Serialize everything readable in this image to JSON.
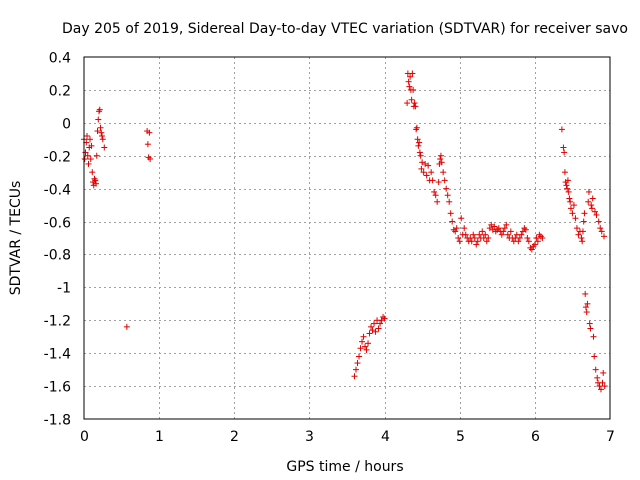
{
  "chart_data": {
    "type": "scatter",
    "title": "Day 205 of 2019, Sidereal Day-to-day VTEC variation (SDTVAR) for receiver savo",
    "xlabel": "GPS time / hours",
    "ylabel": "SDTVAR / TECUs",
    "xlim": [
      0,
      7
    ],
    "ylim": [
      -1.8,
      0.4
    ],
    "xticks": [
      0,
      1,
      2,
      3,
      4,
      5,
      6,
      7
    ],
    "xtick_labels": [
      "0",
      "1",
      "2",
      "3",
      "4",
      "5",
      "6",
      "7"
    ],
    "yticks": [
      0.4,
      0.2,
      0,
      -0.2,
      -0.4,
      -0.6,
      -0.8,
      -1,
      -1.2,
      -1.4,
      -1.6,
      -1.8
    ],
    "ytick_labels": [
      "0.4",
      "0.2",
      "0",
      "-0.2",
      "-0.4",
      "-0.6",
      "-0.8",
      "-1",
      "-1.2",
      "-1.4",
      "-1.6",
      "-1.8"
    ],
    "grid": true,
    "marker": "+",
    "marker_color": "#e00000",
    "series": [
      {
        "name": "SDTVAR",
        "points": [
          [
            0.0,
            -0.1
          ],
          [
            0.01,
            -0.22
          ],
          [
            0.02,
            -0.18
          ],
          [
            0.03,
            -0.12
          ],
          [
            0.04,
            -0.08
          ],
          [
            0.05,
            -0.2
          ],
          [
            0.06,
            -0.25
          ],
          [
            0.07,
            -0.15
          ],
          [
            0.08,
            -0.1
          ],
          [
            0.09,
            -0.22
          ],
          [
            0.1,
            -0.14
          ],
          [
            0.11,
            -0.3
          ],
          [
            0.12,
            -0.36
          ],
          [
            0.13,
            -0.38
          ],
          [
            0.14,
            -0.34
          ],
          [
            0.15,
            -0.35
          ],
          [
            0.16,
            -0.37
          ],
          [
            0.17,
            -0.2
          ],
          [
            0.18,
            -0.05
          ],
          [
            0.19,
            0.02
          ],
          [
            0.2,
            0.07
          ],
          [
            0.21,
            0.08
          ],
          [
            0.22,
            -0.03
          ],
          [
            0.23,
            -0.06
          ],
          [
            0.24,
            -0.08
          ],
          [
            0.25,
            -0.1
          ],
          [
            0.27,
            -0.15
          ],
          [
            0.57,
            -1.24
          ],
          [
            0.84,
            -0.05
          ],
          [
            0.85,
            -0.13
          ],
          [
            0.86,
            -0.21
          ],
          [
            0.87,
            -0.06
          ],
          [
            0.88,
            -0.22
          ],
          [
            3.6,
            -1.54
          ],
          [
            3.62,
            -1.5
          ],
          [
            3.64,
            -1.46
          ],
          [
            3.66,
            -1.42
          ],
          [
            3.68,
            -1.37
          ],
          [
            3.7,
            -1.33
          ],
          [
            3.72,
            -1.3
          ],
          [
            3.74,
            -1.36
          ],
          [
            3.76,
            -1.38
          ],
          [
            3.78,
            -1.34
          ],
          [
            3.8,
            -1.28
          ],
          [
            3.82,
            -1.24
          ],
          [
            3.84,
            -1.26
          ],
          [
            3.86,
            -1.22
          ],
          [
            3.88,
            -1.27
          ],
          [
            3.9,
            -1.2
          ],
          [
            3.92,
            -1.25
          ],
          [
            3.94,
            -1.22
          ],
          [
            3.96,
            -1.2
          ],
          [
            3.98,
            -1.18
          ],
          [
            4.0,
            -1.19
          ],
          [
            4.3,
            0.12
          ],
          [
            4.31,
            0.3
          ],
          [
            4.32,
            0.25
          ],
          [
            4.33,
            0.22
          ],
          [
            4.34,
            0.28
          ],
          [
            4.35,
            0.2
          ],
          [
            4.36,
            0.14
          ],
          [
            4.37,
            0.3
          ],
          [
            4.38,
            0.2
          ],
          [
            4.39,
            0.1
          ],
          [
            4.4,
            0.12
          ],
          [
            4.41,
            0.1
          ],
          [
            4.42,
            -0.04
          ],
          [
            4.43,
            -0.03
          ],
          [
            4.44,
            -0.1
          ],
          [
            4.45,
            -0.14
          ],
          [
            4.46,
            -0.12
          ],
          [
            4.47,
            -0.18
          ],
          [
            4.48,
            -0.2
          ],
          [
            4.49,
            -0.28
          ],
          [
            4.5,
            -0.24
          ],
          [
            4.52,
            -0.3
          ],
          [
            4.54,
            -0.25
          ],
          [
            4.56,
            -0.32
          ],
          [
            4.58,
            -0.26
          ],
          [
            4.6,
            -0.35
          ],
          [
            4.62,
            -0.3
          ],
          [
            4.64,
            -0.35
          ],
          [
            4.66,
            -0.42
          ],
          [
            4.68,
            -0.44
          ],
          [
            4.7,
            -0.48
          ],
          [
            4.72,
            -0.36
          ],
          [
            4.73,
            -0.25
          ],
          [
            4.74,
            -0.22
          ],
          [
            4.75,
            -0.2
          ],
          [
            4.76,
            -0.24
          ],
          [
            4.78,
            -0.3
          ],
          [
            4.8,
            -0.35
          ],
          [
            4.82,
            -0.4
          ],
          [
            4.84,
            -0.44
          ],
          [
            4.86,
            -0.48
          ],
          [
            4.88,
            -0.55
          ],
          [
            4.9,
            -0.6
          ],
          [
            4.92,
            -0.65
          ],
          [
            4.94,
            -0.66
          ],
          [
            4.96,
            -0.64
          ],
          [
            4.98,
            -0.7
          ],
          [
            5.0,
            -0.72
          ],
          [
            5.02,
            -0.58
          ],
          [
            5.04,
            -0.68
          ],
          [
            5.06,
            -0.64
          ],
          [
            5.08,
            -0.68
          ],
          [
            5.1,
            -0.7
          ],
          [
            5.12,
            -0.72
          ],
          [
            5.14,
            -0.7
          ],
          [
            5.16,
            -0.72
          ],
          [
            5.18,
            -0.68
          ],
          [
            5.2,
            -0.7
          ],
          [
            5.22,
            -0.74
          ],
          [
            5.24,
            -0.72
          ],
          [
            5.26,
            -0.68
          ],
          [
            5.28,
            -0.7
          ],
          [
            5.3,
            -0.66
          ],
          [
            5.32,
            -0.7
          ],
          [
            5.34,
            -0.68
          ],
          [
            5.36,
            -0.72
          ],
          [
            5.38,
            -0.7
          ],
          [
            5.4,
            -0.64
          ],
          [
            5.42,
            -0.62
          ],
          [
            5.44,
            -0.65
          ],
          [
            5.46,
            -0.63
          ],
          [
            5.48,
            -0.66
          ],
          [
            5.5,
            -0.65
          ],
          [
            5.52,
            -0.64
          ],
          [
            5.54,
            -0.66
          ],
          [
            5.56,
            -0.68
          ],
          [
            5.58,
            -0.66
          ],
          [
            5.6,
            -0.64
          ],
          [
            5.62,
            -0.62
          ],
          [
            5.64,
            -0.68
          ],
          [
            5.66,
            -0.7
          ],
          [
            5.68,
            -0.66
          ],
          [
            5.7,
            -0.7
          ],
          [
            5.72,
            -0.72
          ],
          [
            5.74,
            -0.7
          ],
          [
            5.76,
            -0.68
          ],
          [
            5.78,
            -0.72
          ],
          [
            5.8,
            -0.7
          ],
          [
            5.82,
            -0.68
          ],
          [
            5.84,
            -0.66
          ],
          [
            5.86,
            -0.64
          ],
          [
            5.88,
            -0.65
          ],
          [
            5.9,
            -0.7
          ],
          [
            5.92,
            -0.72
          ],
          [
            5.94,
            -0.76
          ],
          [
            5.96,
            -0.77
          ],
          [
            5.98,
            -0.75
          ],
          [
            6.0,
            -0.74
          ],
          [
            6.02,
            -0.7
          ],
          [
            6.04,
            -0.72
          ],
          [
            6.06,
            -0.68
          ],
          [
            6.08,
            -0.69
          ],
          [
            6.1,
            -0.7
          ],
          [
            6.36,
            -0.04
          ],
          [
            6.38,
            -0.15
          ],
          [
            6.39,
            -0.18
          ],
          [
            6.4,
            -0.3
          ],
          [
            6.41,
            -0.36
          ],
          [
            6.42,
            -0.38
          ],
          [
            6.43,
            -0.4
          ],
          [
            6.44,
            -0.35
          ],
          [
            6.45,
            -0.42
          ],
          [
            6.46,
            -0.46
          ],
          [
            6.47,
            -0.48
          ],
          [
            6.48,
            -0.52
          ],
          [
            6.5,
            -0.55
          ],
          [
            6.52,
            -0.5
          ],
          [
            6.54,
            -0.58
          ],
          [
            6.56,
            -0.64
          ],
          [
            6.58,
            -0.68
          ],
          [
            6.6,
            -0.66
          ],
          [
            6.62,
            -0.7
          ],
          [
            6.63,
            -0.72
          ],
          [
            6.64,
            -0.66
          ],
          [
            6.65,
            -0.6
          ],
          [
            6.66,
            -0.55
          ],
          [
            6.67,
            -1.04
          ],
          [
            6.68,
            -1.12
          ],
          [
            6.69,
            -1.15
          ],
          [
            6.7,
            -1.1
          ],
          [
            6.71,
            -0.48
          ],
          [
            6.72,
            -0.42
          ],
          [
            6.73,
            -1.22
          ],
          [
            6.74,
            -1.25
          ],
          [
            6.75,
            -0.5
          ],
          [
            6.76,
            -0.52
          ],
          [
            6.77,
            -0.46
          ],
          [
            6.78,
            -1.3
          ],
          [
            6.79,
            -1.42
          ],
          [
            6.8,
            -0.54
          ],
          [
            6.81,
            -1.5
          ],
          [
            6.82,
            -0.56
          ],
          [
            6.83,
            -1.55
          ],
          [
            6.84,
            -1.58
          ],
          [
            6.85,
            -0.6
          ],
          [
            6.86,
            -1.6
          ],
          [
            6.87,
            -0.64
          ],
          [
            6.88,
            -1.62
          ],
          [
            6.89,
            -0.66
          ],
          [
            6.9,
            -1.58
          ],
          [
            6.91,
            -1.52
          ],
          [
            6.92,
            -0.69
          ],
          [
            6.93,
            -1.6
          ]
        ]
      }
    ]
  }
}
